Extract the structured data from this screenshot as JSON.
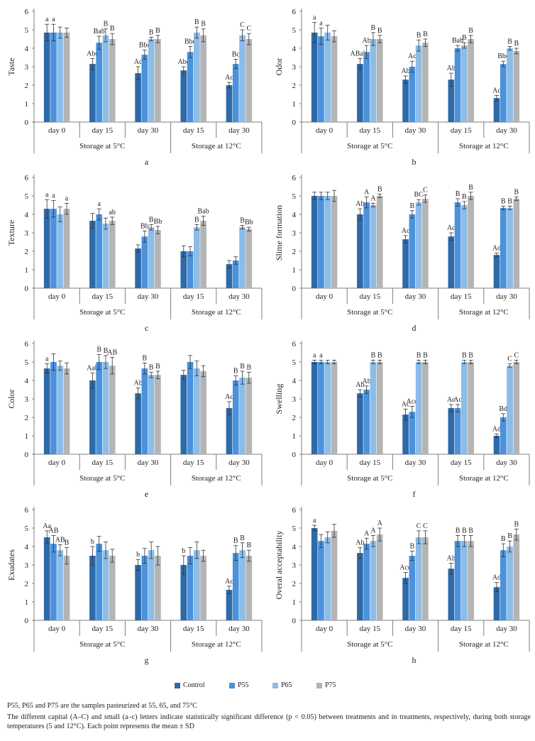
{
  "legend": [
    {
      "name": "Control",
      "color": "#2e6aa8"
    },
    {
      "name": "P55",
      "color": "#4a92dc"
    },
    {
      "name": "P65",
      "color": "#8cbce8"
    },
    {
      "name": "P75",
      "color": "#b4b4b4"
    }
  ],
  "notes": {
    "line1": "P55, P65 and P75 are the samples pasteurized at 55, 65, and 75°C",
    "line2": "The different capital (A–C) and small (a–c) letters indicate statistically significant difference (p < 0.05) between treatments and in treatments, respectively, during both storage temperatures (5 and 12°C). Each point represents the mean ± SD"
  },
  "chart_data": [
    {
      "type": "bar",
      "panel": "a",
      "ylabel": "Taste",
      "ylim": [
        0,
        6
      ],
      "yticks": [
        0,
        1,
        2,
        3,
        4,
        5,
        6
      ],
      "categories": [
        "day 0",
        "day 15",
        "day 30",
        "day 15",
        "day 30"
      ],
      "groups": [
        {
          "label": "Storage at 5°C",
          "span": [
            0,
            2
          ]
        },
        {
          "label": "Storage at 12°C",
          "span": [
            3,
            4
          ]
        }
      ],
      "series": [
        {
          "name": "Control",
          "values": [
            4.85,
            3.15,
            2.65,
            2.8,
            2.0
          ],
          "errors": [
            0.45,
            0.3,
            0.35,
            0.2,
            0.15
          ]
        },
        {
          "name": "P55",
          "values": [
            4.85,
            4.3,
            3.65,
            3.8,
            3.15
          ],
          "errors": [
            0.45,
            0.35,
            0.25,
            0.3,
            0.25
          ]
        },
        {
          "name": "P65",
          "values": [
            4.85,
            4.7,
            4.5,
            4.85,
            4.7
          ],
          "errors": [
            0.3,
            0.35,
            0.1,
            0.3,
            0.3
          ]
        },
        {
          "name": "P75",
          "values": [
            4.85,
            4.5,
            4.5,
            4.7,
            4.5
          ],
          "errors": [
            0.25,
            0.3,
            0.2,
            0.35,
            0.3
          ]
        }
      ],
      "labels": [
        [
          "a",
          "Abc",
          "Ac",
          "Abc",
          "Ac"
        ],
        [
          "a",
          "Bab",
          "Bbc",
          "Bbc",
          "Bc"
        ],
        [
          "",
          "B",
          "B",
          "B",
          "C"
        ],
        [
          "",
          "B",
          "B",
          "B",
          "C"
        ]
      ]
    },
    {
      "type": "bar",
      "panel": "b",
      "ylabel": "Odor",
      "ylim": [
        0,
        6
      ],
      "yticks": [
        0,
        1,
        2,
        3,
        4,
        5,
        6
      ],
      "categories": [
        "day 0",
        "day 15",
        "day 30",
        "day 15",
        "day 30"
      ],
      "groups": [
        {
          "label": "Storage at 5°C",
          "span": [
            0,
            2
          ]
        },
        {
          "label": "Storage at 12°C",
          "span": [
            3,
            4
          ]
        }
      ],
      "series": [
        {
          "name": "Control",
          "values": [
            4.85,
            3.15,
            2.3,
            2.3,
            1.3
          ],
          "errors": [
            0.55,
            0.3,
            0.2,
            0.35,
            0.15
          ]
        },
        {
          "name": "P55",
          "values": [
            4.65,
            3.8,
            3.0,
            4.0,
            3.15
          ],
          "errors": [
            0.45,
            0.35,
            0.3,
            0.15,
            0.15
          ]
        },
        {
          "name": "P65",
          "values": [
            4.85,
            4.5,
            4.15,
            4.15,
            4.0
          ],
          "errors": [
            0.4,
            0.35,
            0.3,
            0.15,
            0.1
          ]
        },
        {
          "name": "P75",
          "values": [
            4.65,
            4.5,
            4.3,
            4.5,
            3.85
          ],
          "errors": [
            0.3,
            0.2,
            0.2,
            0.2,
            0.15
          ]
        }
      ],
      "labels": [
        [
          "a",
          "ABabc",
          "Ab",
          "Ab",
          "Ac"
        ],
        [
          "a",
          "Ab",
          "Ac",
          "Bab",
          "Bbc"
        ],
        [
          "",
          "B",
          "B",
          "B",
          "B"
        ],
        [
          "",
          "B",
          "B",
          "B",
          "B"
        ]
      ]
    },
    {
      "type": "bar",
      "panel": "c",
      "ylabel": "Texture",
      "ylim": [
        0,
        6
      ],
      "yticks": [
        0,
        1,
        2,
        3,
        4,
        5,
        6
      ],
      "categories": [
        "day 0",
        "day 15",
        "day 30",
        "day 15",
        "day 30"
      ],
      "groups": [
        {
          "label": "Storage at 5°C",
          "span": [
            0,
            2
          ]
        },
        {
          "label": "Storage at 12°C",
          "span": [
            3,
            4
          ]
        }
      ],
      "series": [
        {
          "name": "Control",
          "values": [
            4.3,
            3.65,
            2.15,
            2.0,
            1.3
          ],
          "errors": [
            0.5,
            0.4,
            0.2,
            0.3,
            0.2
          ]
        },
        {
          "name": "P55",
          "values": [
            4.3,
            4.0,
            2.8,
            2.0,
            1.5
          ],
          "errors": [
            0.45,
            0.3,
            0.3,
            0.25,
            0.2
          ]
        },
        {
          "name": "P65",
          "values": [
            4.0,
            3.5,
            3.3,
            3.3,
            3.3
          ],
          "errors": [
            0.4,
            0.3,
            0.15,
            0.15,
            0.1
          ]
        },
        {
          "name": "P75",
          "values": [
            4.3,
            3.65,
            3.15,
            3.65,
            3.2
          ],
          "errors": [
            0.3,
            0.2,
            0.2,
            0.25,
            0.1
          ]
        }
      ],
      "labels": [
        [
          "a",
          "",
          "",
          "",
          ""
        ],
        [
          "a",
          "a",
          "Bb",
          "",
          ""
        ],
        [
          "",
          "",
          "B",
          "B",
          "B"
        ],
        [
          "a",
          "ab",
          "Bb",
          "Bab",
          "Bb"
        ]
      ]
    },
    {
      "type": "bar",
      "panel": "d",
      "ylabel": "Slime formation",
      "ylim": [
        0,
        6
      ],
      "yticks": [
        0,
        1,
        2,
        3,
        4,
        5,
        6
      ],
      "categories": [
        "day 0",
        "day 15",
        "day 30",
        "day 15",
        "day 30"
      ],
      "groups": [
        {
          "label": "Storage at 5°C",
          "span": [
            0,
            2
          ]
        },
        {
          "label": "Storage at 12°C",
          "span": [
            3,
            4
          ]
        }
      ],
      "series": [
        {
          "name": "Control",
          "values": [
            5.0,
            4.0,
            2.65,
            2.8,
            1.8
          ],
          "errors": [
            0.2,
            0.3,
            0.2,
            0.2,
            0.1
          ]
        },
        {
          "name": "P55",
          "values": [
            5.0,
            4.65,
            4.0,
            4.65,
            4.35
          ],
          "errors": [
            0.2,
            0.3,
            0.2,
            0.2,
            0.1
          ]
        },
        {
          "name": "P65",
          "values": [
            5.0,
            4.5,
            4.65,
            4.5,
            4.35
          ],
          "errors": [
            0.2,
            0.1,
            0.15,
            0.2,
            0.1
          ]
        },
        {
          "name": "P75",
          "values": [
            5.0,
            5.0,
            4.85,
            5.0,
            4.85
          ],
          "errors": [
            0.3,
            0.1,
            0.2,
            0.2,
            0.1
          ]
        }
      ],
      "labels": [
        [
          "",
          "Ab",
          "Ac",
          "Ac",
          "Ad"
        ],
        [
          "",
          "A",
          "B",
          "B",
          "B"
        ],
        [
          "",
          "A",
          "BC",
          "B",
          "B"
        ],
        [
          "",
          "B",
          "C",
          "B",
          "B"
        ]
      ]
    },
    {
      "type": "bar",
      "panel": "e",
      "ylabel": "Color",
      "ylim": [
        0,
        6
      ],
      "yticks": [
        0,
        1,
        2,
        3,
        4,
        5,
        6
      ],
      "categories": [
        "day 0",
        "day 15",
        "day 30",
        "day 15",
        "day 30"
      ],
      "groups": [
        {
          "label": "Storage at 5°C",
          "span": [
            0,
            2
          ]
        },
        {
          "label": "Storage at 12°C",
          "span": [
            3,
            4
          ]
        }
      ],
      "series": [
        {
          "name": "Control",
          "values": [
            4.65,
            4.0,
            3.3,
            4.3,
            2.5
          ],
          "errors": [
            0.25,
            0.4,
            0.3,
            0.25,
            0.35
          ]
        },
        {
          "name": "P55",
          "values": [
            5.0,
            5.0,
            4.65,
            5.0,
            4.0
          ],
          "errors": [
            0.45,
            0.4,
            0.3,
            0.35,
            0.25
          ]
        },
        {
          "name": "P65",
          "values": [
            4.8,
            5.0,
            4.3,
            4.65,
            4.15
          ],
          "errors": [
            0.25,
            0.35,
            0.15,
            0.4,
            0.35
          ]
        },
        {
          "name": "P75",
          "values": [
            4.65,
            4.8,
            4.3,
            4.5,
            4.15
          ],
          "errors": [
            0.3,
            0.45,
            0.2,
            0.3,
            0.3
          ]
        }
      ],
      "labels": [
        [
          "a",
          "Aab",
          "Ab",
          "",
          "Ac"
        ],
        [
          "",
          "B",
          "B",
          "",
          "B"
        ],
        [
          "",
          "B",
          "B",
          "",
          "B"
        ],
        [
          "",
          "AB",
          "B",
          "",
          "B"
        ]
      ]
    },
    {
      "type": "bar",
      "panel": "f",
      "ylabel": "Swelling",
      "ylim": [
        0,
        6
      ],
      "yticks": [
        0,
        1,
        2,
        3,
        4,
        5,
        6
      ],
      "categories": [
        "day 0",
        "day 15",
        "day 30",
        "day 15",
        "day 30"
      ],
      "groups": [
        {
          "label": "Storage at 5°C",
          "span": [
            0,
            2
          ]
        },
        {
          "label": "Storage at 12°C",
          "span": [
            3,
            4
          ]
        }
      ],
      "series": [
        {
          "name": "Control",
          "values": [
            5.0,
            3.3,
            2.15,
            2.5,
            1.0
          ],
          "errors": [
            0.1,
            0.2,
            0.3,
            0.2,
            0.1
          ]
        },
        {
          "name": "P55",
          "values": [
            5.0,
            3.5,
            2.3,
            2.5,
            2.0
          ],
          "errors": [
            0.1,
            0.2,
            0.3,
            0.2,
            0.2
          ]
        },
        {
          "name": "P65",
          "values": [
            5.0,
            5.0,
            5.0,
            5.0,
            4.8
          ],
          "errors": [
            0.1,
            0.1,
            0.1,
            0.1,
            0.1
          ]
        },
        {
          "name": "P75",
          "values": [
            5.0,
            5.0,
            5.0,
            5.0,
            5.0
          ],
          "errors": [
            0.1,
            0.1,
            0.1,
            0.1,
            0.1
          ]
        }
      ],
      "labels": [
        [
          "a",
          "Ab",
          "Ac",
          "Ac",
          "Ad"
        ],
        [
          "a",
          "Ab",
          "Acd",
          "Ac",
          "Bd"
        ],
        [
          "",
          "B",
          "B",
          "B",
          "C"
        ],
        [
          "",
          "B",
          "B",
          "B",
          "C"
        ]
      ]
    },
    {
      "type": "bar",
      "panel": "g",
      "ylabel": "Exudates",
      "ylim": [
        0,
        6
      ],
      "yticks": [
        0,
        1,
        2,
        3,
        4,
        5,
        6
      ],
      "categories": [
        "day 0",
        "day 15",
        "day 30",
        "day 15",
        "day 30"
      ],
      "groups": [
        {
          "label": "Storage at 5°C",
          "span": [
            0,
            2
          ]
        },
        {
          "label": "Storage at 12°C",
          "span": [
            3,
            4
          ]
        }
      ],
      "series": [
        {
          "name": "Control",
          "values": [
            4.5,
            3.5,
            3.0,
            3.0,
            1.65
          ],
          "errors": [
            0.35,
            0.5,
            0.3,
            0.5,
            0.2
          ]
        },
        {
          "name": "P55",
          "values": [
            4.15,
            4.15,
            3.5,
            3.5,
            3.65
          ],
          "errors": [
            0.45,
            0.4,
            0.4,
            0.45,
            0.4
          ]
        },
        {
          "name": "P65",
          "values": [
            3.8,
            3.8,
            3.8,
            3.8,
            3.8
          ],
          "errors": [
            0.3,
            0.45,
            0.45,
            0.45,
            0.4
          ]
        },
        {
          "name": "P75",
          "values": [
            3.5,
            3.5,
            3.5,
            3.5,
            3.5
          ],
          "errors": [
            0.45,
            0.35,
            0.5,
            0.3,
            0.3
          ]
        }
      ],
      "labels": [
        [
          "Aa",
          "b",
          "b",
          "b",
          "Ac"
        ],
        [
          "AB",
          "",
          "",
          "",
          "B"
        ],
        [
          "AB",
          "",
          "",
          "",
          "B"
        ],
        [
          "B",
          "",
          "",
          "",
          "B"
        ]
      ]
    },
    {
      "type": "bar",
      "panel": "h",
      "ylabel": "Overal acceptability",
      "ylim": [
        0,
        6
      ],
      "yticks": [
        0,
        1,
        2,
        3,
        4,
        5,
        6
      ],
      "categories": [
        "day 0",
        "day 15",
        "day 30",
        "day 15",
        "day 30"
      ],
      "groups": [
        {
          "label": "Storage at 5°C",
          "span": [
            0,
            2
          ]
        },
        {
          "label": "Storage at 12°C",
          "span": [
            3,
            4
          ]
        }
      ],
      "series": [
        {
          "name": "Control",
          "values": [
            5.0,
            3.65,
            2.3,
            2.8,
            1.8
          ],
          "errors": [
            0.15,
            0.3,
            0.3,
            0.3,
            0.25
          ]
        },
        {
          "name": "P55",
          "values": [
            4.3,
            4.15,
            3.5,
            4.3,
            3.8
          ],
          "errors": [
            0.35,
            0.3,
            0.25,
            0.3,
            0.35
          ]
        },
        {
          "name": "P65",
          "values": [
            4.5,
            4.3,
            4.5,
            4.3,
            4.0
          ],
          "errors": [
            0.3,
            0.3,
            0.35,
            0.3,
            0.3
          ]
        },
        {
          "name": "P75",
          "values": [
            4.85,
            4.65,
            4.5,
            4.3,
            4.65
          ],
          "errors": [
            0.35,
            0.35,
            0.35,
            0.3,
            0.3
          ]
        }
      ],
      "labels": [
        [
          "a",
          "Ab",
          "Acd",
          "Ab",
          "Ad"
        ],
        [
          "",
          "A",
          "B",
          "B",
          "B"
        ],
        [
          "",
          "A",
          "C",
          "B",
          "B"
        ],
        [
          "",
          "A",
          "C",
          "B",
          "B"
        ]
      ]
    }
  ]
}
